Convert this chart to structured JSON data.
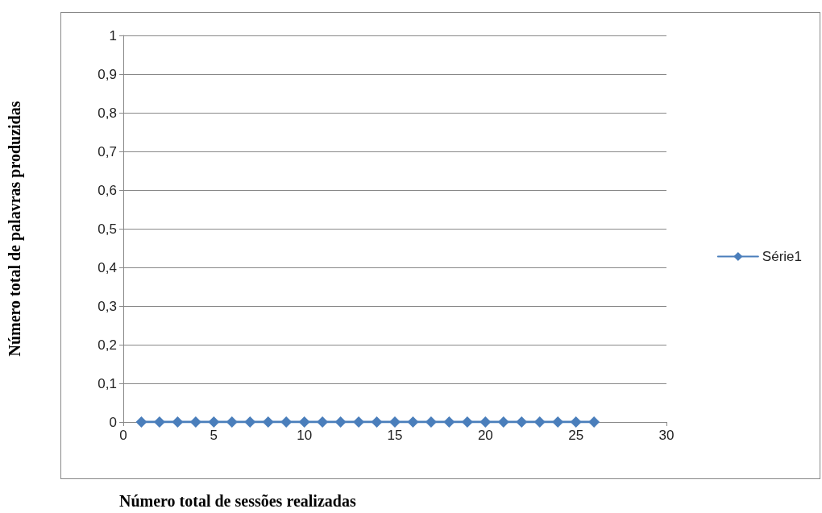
{
  "chart_data": {
    "type": "line",
    "xlabel": "Número total de sessões realizadas",
    "ylabel": "Número total de palavras produzidas",
    "x": [
      1,
      2,
      3,
      4,
      5,
      6,
      7,
      8,
      9,
      10,
      11,
      12,
      13,
      14,
      15,
      16,
      17,
      18,
      19,
      20,
      21,
      22,
      23,
      24,
      25,
      26
    ],
    "series": [
      {
        "name": "Série1",
        "color": "#4a7ebb",
        "values": [
          0,
          0,
          0,
          0,
          0,
          0,
          0,
          0,
          0,
          0,
          0,
          0,
          0,
          0,
          0,
          0,
          0,
          0,
          0,
          0,
          0,
          0,
          0,
          0,
          0,
          0
        ]
      }
    ],
    "xlim": [
      0,
      30
    ],
    "xticks": [
      0,
      5,
      10,
      15,
      20,
      25,
      30
    ],
    "ylim": [
      0,
      1
    ],
    "yticks": [
      0,
      {
        "value": 0.1,
        "label": "0,1"
      },
      {
        "value": 0.2,
        "label": "0,2"
      },
      {
        "value": 0.3,
        "label": "0,3"
      },
      {
        "value": 0.4,
        "label": "0,4"
      },
      {
        "value": 0.5,
        "label": "0,5"
      },
      {
        "value": 0.6,
        "label": "0,6"
      },
      {
        "value": 0.7,
        "label": "0,7"
      },
      {
        "value": 0.8,
        "label": "0,8"
      },
      {
        "value": 0.9,
        "label": "0,9"
      },
      1
    ],
    "grid": "y",
    "legend": "right",
    "marker": "diamond",
    "line_style": "solid"
  }
}
